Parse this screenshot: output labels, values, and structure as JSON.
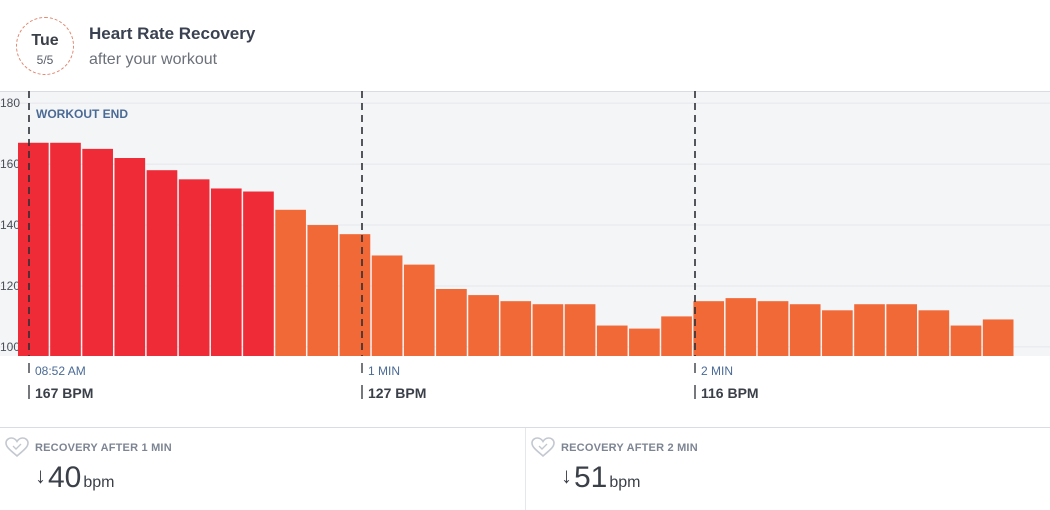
{
  "header": {
    "day": "Tue",
    "date": "5/5",
    "title": "Heart Rate Recovery",
    "subtitle": "after your workout"
  },
  "colors": {
    "workout": "#ef2b37",
    "recovery": "#f26938",
    "grid": "#e6e8ec",
    "annotation": "#4a6a96"
  },
  "chart_data": {
    "type": "bar",
    "ylim": [
      97,
      184
    ],
    "yticks": [
      100,
      120,
      140,
      160,
      180
    ],
    "workout_end_label": "WORKOUT END",
    "bars": [
      {
        "value": 167,
        "phase": "workout"
      },
      {
        "value": 167,
        "phase": "workout"
      },
      {
        "value": 165,
        "phase": "workout"
      },
      {
        "value": 162,
        "phase": "workout"
      },
      {
        "value": 158,
        "phase": "workout"
      },
      {
        "value": 155,
        "phase": "workout"
      },
      {
        "value": 152,
        "phase": "workout"
      },
      {
        "value": 151,
        "phase": "workout"
      },
      {
        "value": 145,
        "phase": "recovery"
      },
      {
        "value": 140,
        "phase": "recovery"
      },
      {
        "value": 137,
        "phase": "recovery"
      },
      {
        "value": 130,
        "phase": "recovery"
      },
      {
        "value": 127,
        "phase": "recovery"
      },
      {
        "value": 119,
        "phase": "recovery"
      },
      {
        "value": 117,
        "phase": "recovery"
      },
      {
        "value": 115,
        "phase": "recovery"
      },
      {
        "value": 114,
        "phase": "recovery"
      },
      {
        "value": 114,
        "phase": "recovery"
      },
      {
        "value": 107,
        "phase": "recovery"
      },
      {
        "value": 106,
        "phase": "recovery"
      },
      {
        "value": 110,
        "phase": "recovery"
      },
      {
        "value": 115,
        "phase": "recovery"
      },
      {
        "value": 116,
        "phase": "recovery"
      },
      {
        "value": 115,
        "phase": "recovery"
      },
      {
        "value": 114,
        "phase": "recovery"
      },
      {
        "value": 112,
        "phase": "recovery"
      },
      {
        "value": 114,
        "phase": "recovery"
      },
      {
        "value": 114,
        "phase": "recovery"
      },
      {
        "value": 112,
        "phase": "recovery"
      },
      {
        "value": 107,
        "phase": "recovery"
      },
      {
        "value": 109,
        "phase": "recovery"
      }
    ],
    "markers": [
      {
        "label": "08:52 AM",
        "value_label": "167 BPM"
      },
      {
        "label": "1 MIN",
        "value_label": "127 BPM"
      },
      {
        "label": "2 MIN",
        "value_label": "116 BPM"
      }
    ]
  },
  "stats": [
    {
      "label": "RECOVERY AFTER 1 MIN",
      "arrow": "↓",
      "value": "40",
      "unit": "bpm"
    },
    {
      "label": "RECOVERY AFTER 2 MIN",
      "arrow": "↓",
      "value": "51",
      "unit": "bpm"
    }
  ]
}
